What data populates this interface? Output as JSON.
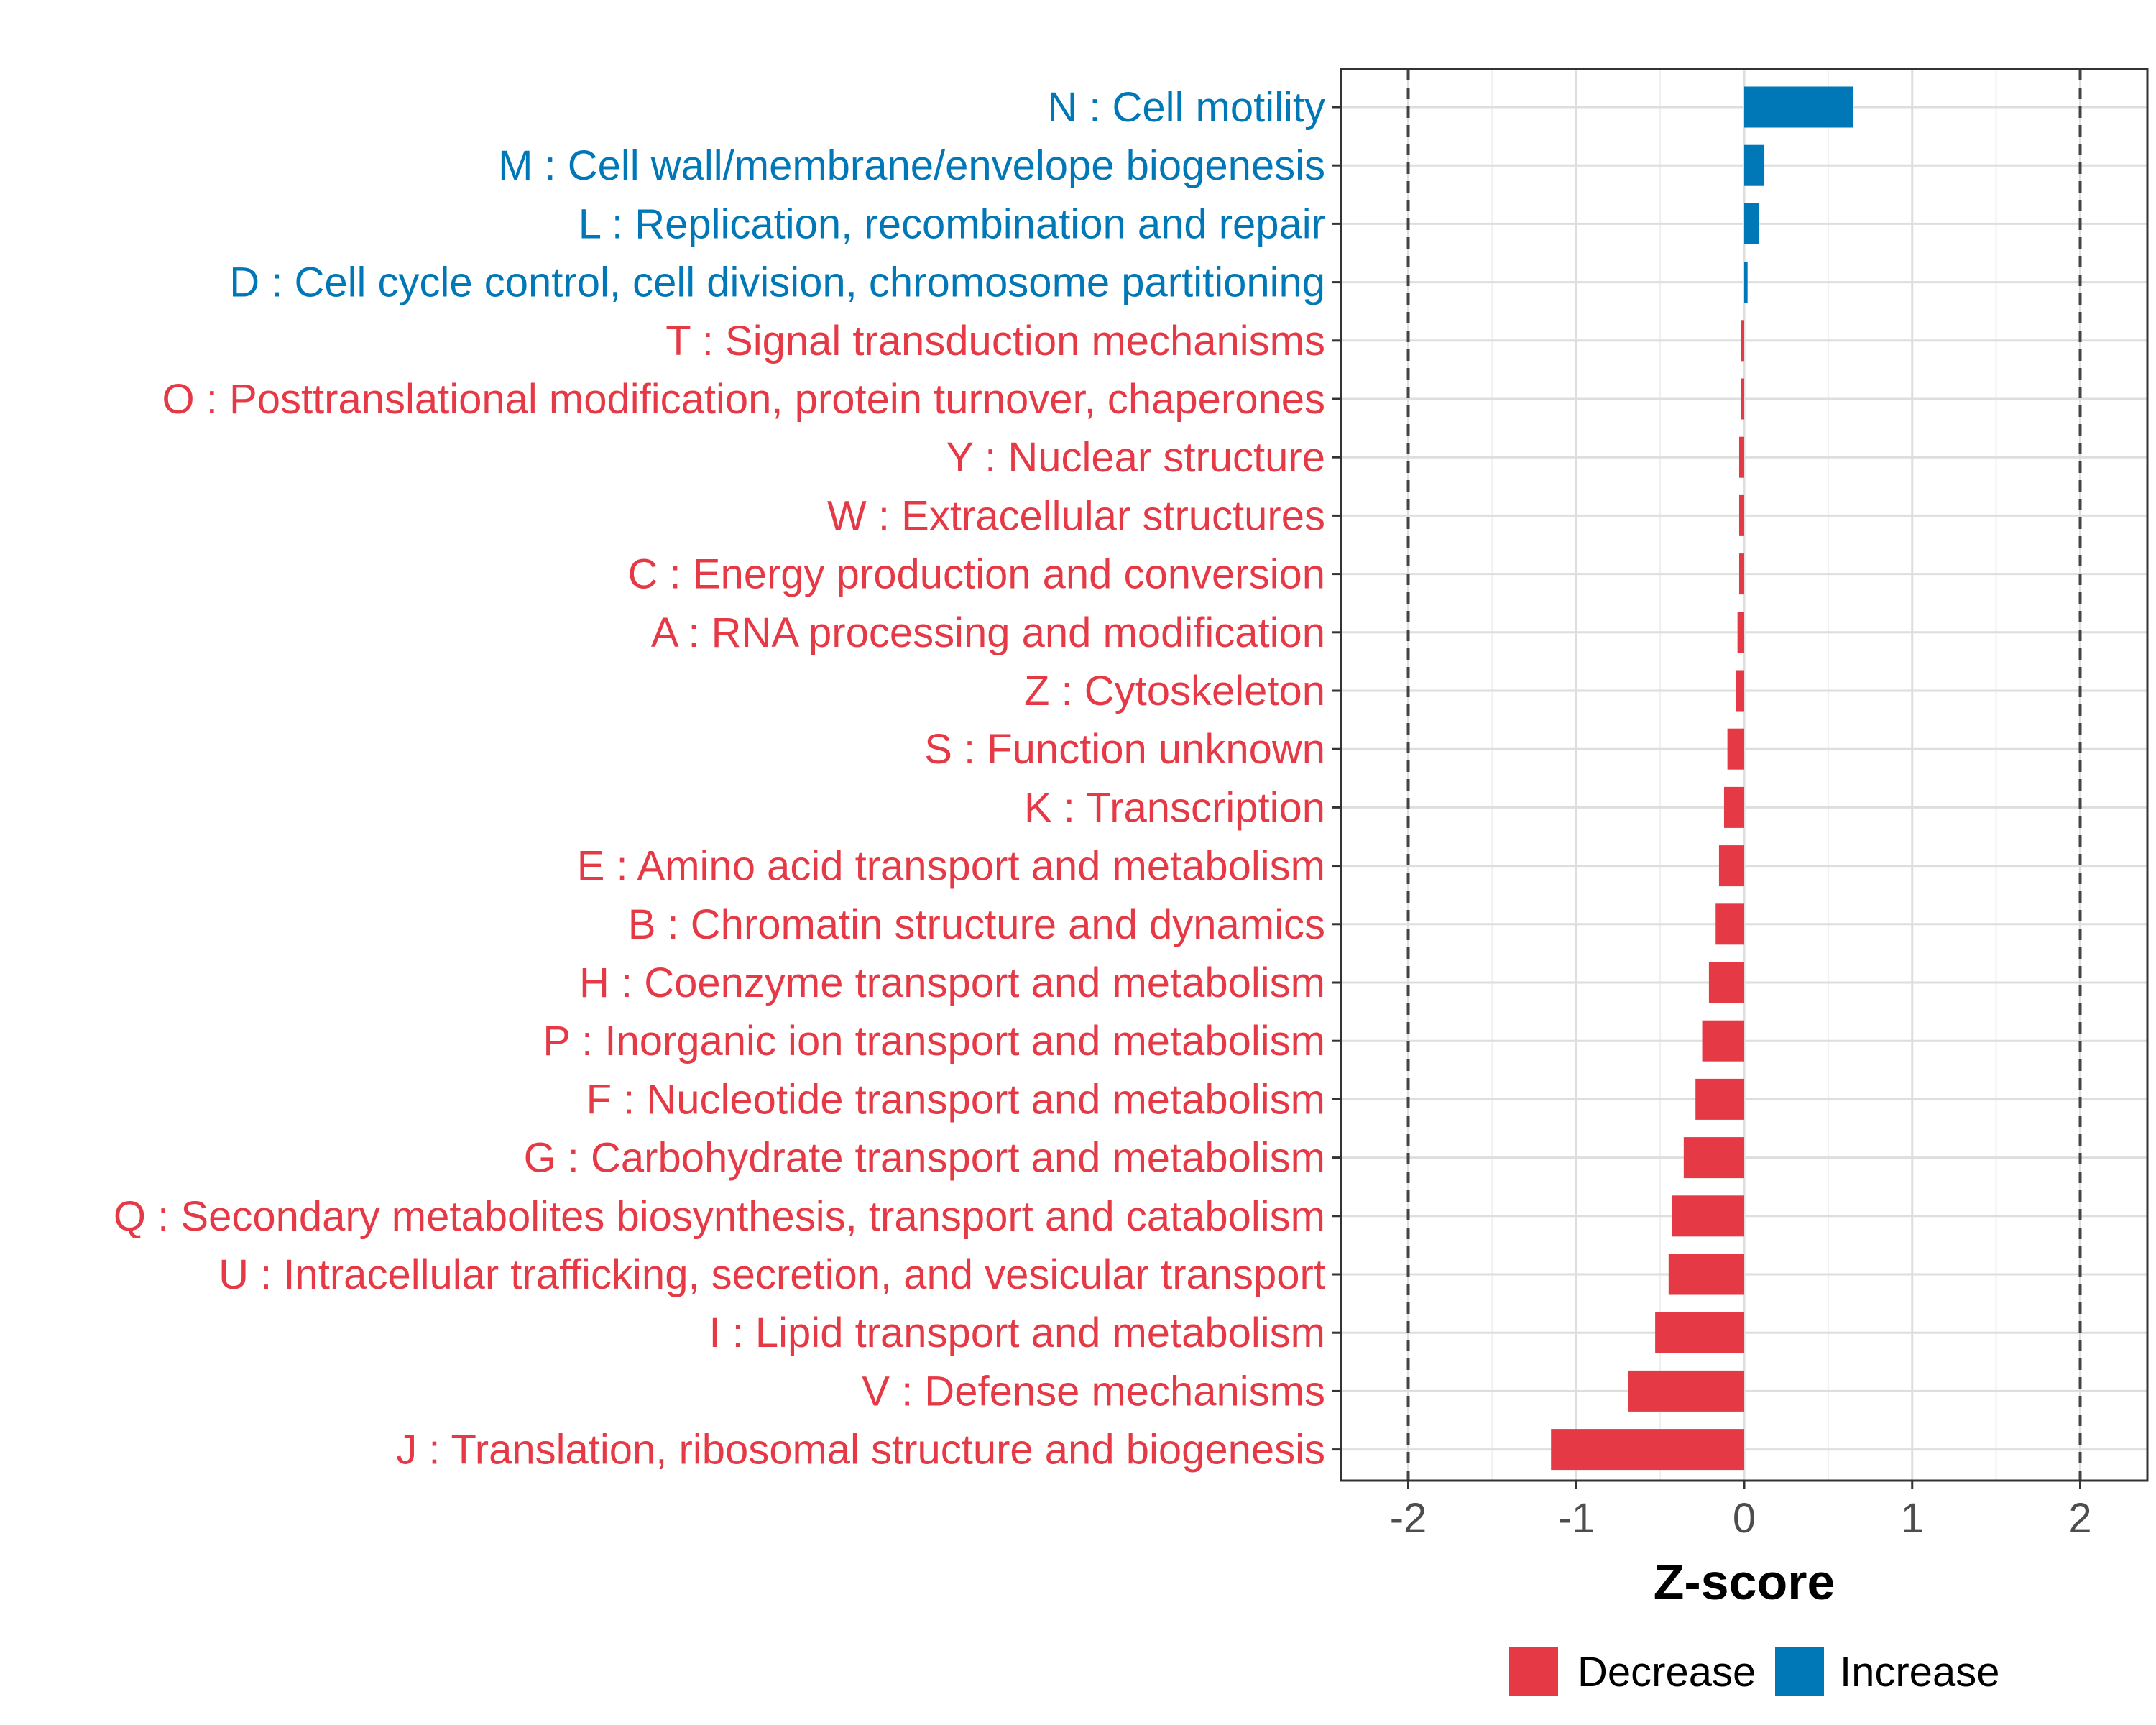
{
  "chart_data": {
    "type": "bar",
    "orientation": "horizontal",
    "xlabel": "Z-score",
    "xlim": [
      -2.4,
      2.4
    ],
    "xticks": [
      -2,
      -1,
      0,
      1,
      2
    ],
    "xtick_labels": [
      "-2",
      "-1",
      "0",
      "1",
      "2"
    ],
    "reference_lines": [
      -2,
      2
    ],
    "grid": true,
    "categories": [
      "N : Cell motility",
      "M : Cell wall/membrane/envelope biogenesis",
      "L : Replication, recombination and repair",
      "D : Cell cycle control, cell division, chromosome partitioning",
      "T : Signal transduction mechanisms",
      "O : Posttranslational modification, protein turnover, chaperones",
      "Y : Nuclear structure",
      "W : Extracellular structures",
      "C : Energy production and conversion",
      "A : RNA processing and modification",
      "Z : Cytoskeleton",
      "S : Function unknown",
      "K : Transcription",
      "E : Amino acid transport and metabolism",
      "B : Chromatin structure and dynamics",
      "H : Coenzyme transport and metabolism",
      "P : Inorganic ion transport and metabolism",
      "F : Nucleotide transport and metabolism",
      "G : Carbohydrate transport and metabolism",
      "Q : Secondary metabolites biosynthesis, transport and catabolism",
      "U : Intracellular trafficking, secretion, and vesicular transport",
      "I : Lipid transport and metabolism",
      "V : Defense mechanisms",
      "J : Translation, ribosomal structure and biogenesis"
    ],
    "values": [
      0.65,
      0.12,
      0.09,
      0.02,
      -0.02,
      -0.02,
      -0.03,
      -0.03,
      -0.03,
      -0.04,
      -0.05,
      -0.1,
      -0.12,
      -0.15,
      -0.17,
      -0.21,
      -0.25,
      -0.29,
      -0.36,
      -0.43,
      -0.45,
      -0.53,
      -0.69,
      -1.15
    ],
    "groups": [
      "Increase",
      "Increase",
      "Increase",
      "Increase",
      "Decrease",
      "Decrease",
      "Decrease",
      "Decrease",
      "Decrease",
      "Decrease",
      "Decrease",
      "Decrease",
      "Decrease",
      "Decrease",
      "Decrease",
      "Decrease",
      "Decrease",
      "Decrease",
      "Decrease",
      "Decrease",
      "Decrease",
      "Decrease",
      "Decrease",
      "Decrease"
    ],
    "legend": [
      {
        "label": "Decrease",
        "color": "#e63946"
      },
      {
        "label": "Increase",
        "color": "#0077b6"
      }
    ],
    "legend_position": "bottom"
  }
}
